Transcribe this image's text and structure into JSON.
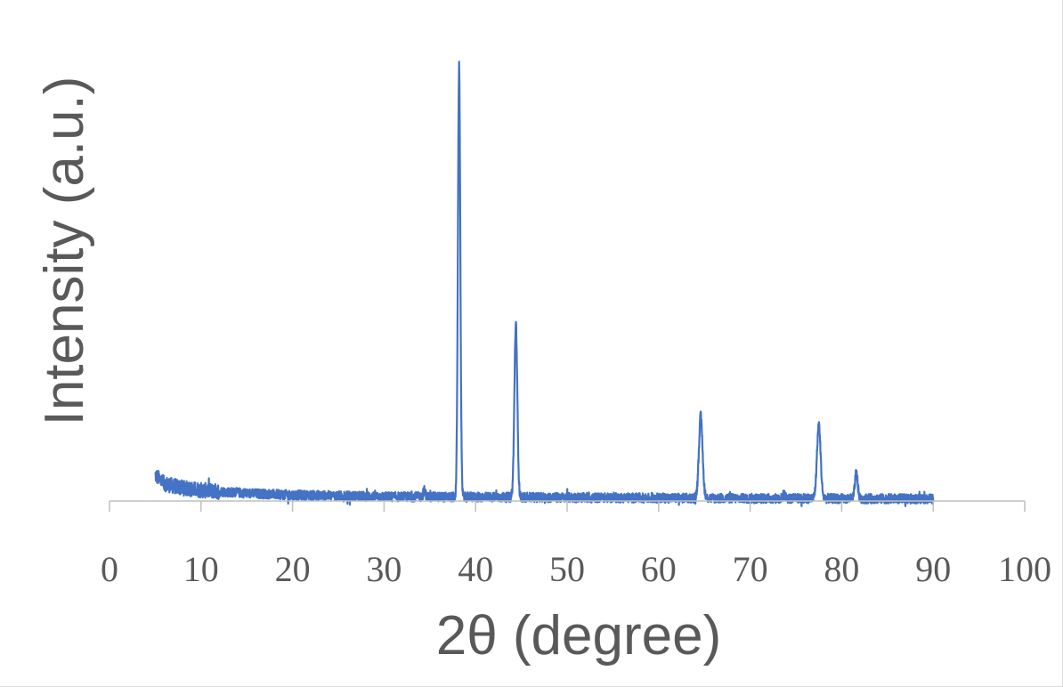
{
  "chart_data": {
    "type": "line",
    "title": "",
    "xlabel": "2θ (degree)",
    "ylabel": "Intensity (a.u.)",
    "xlim": [
      0,
      100
    ],
    "ylim": [
      0,
      100
    ],
    "x_ticks": [
      0,
      10,
      20,
      30,
      40,
      50,
      60,
      70,
      80,
      90,
      100
    ],
    "y_ticks": [],
    "grid": false,
    "legend": "none",
    "series_color": "#4472c4",
    "baseline": [
      [
        5,
        6.0
      ],
      [
        6,
        4.0
      ],
      [
        8,
        3.0
      ],
      [
        10,
        2.5
      ],
      [
        15,
        1.8
      ],
      [
        20,
        1.4
      ],
      [
        30,
        1.0
      ],
      [
        40,
        0.9
      ],
      [
        50,
        0.8
      ],
      [
        60,
        0.7
      ],
      [
        70,
        0.6
      ],
      [
        80,
        0.55
      ],
      [
        90,
        0.5
      ]
    ],
    "peaks": [
      {
        "x": 38.2,
        "height": 100.0,
        "width": 0.13
      },
      {
        "x": 44.4,
        "height": 40.0,
        "width": 0.16
      },
      {
        "x": 64.6,
        "height": 19.0,
        "width": 0.2
      },
      {
        "x": 77.5,
        "height": 17.0,
        "width": 0.2
      },
      {
        "x": 81.6,
        "height": 6.0,
        "width": 0.15
      },
      {
        "x": 34.4,
        "height": 1.5,
        "width": 0.12
      },
      {
        "x": 73.7,
        "height": 1.0,
        "width": 0.12
      }
    ],
    "x_range": [
      5,
      90
    ],
    "noise_amplitude": 1.1
  }
}
